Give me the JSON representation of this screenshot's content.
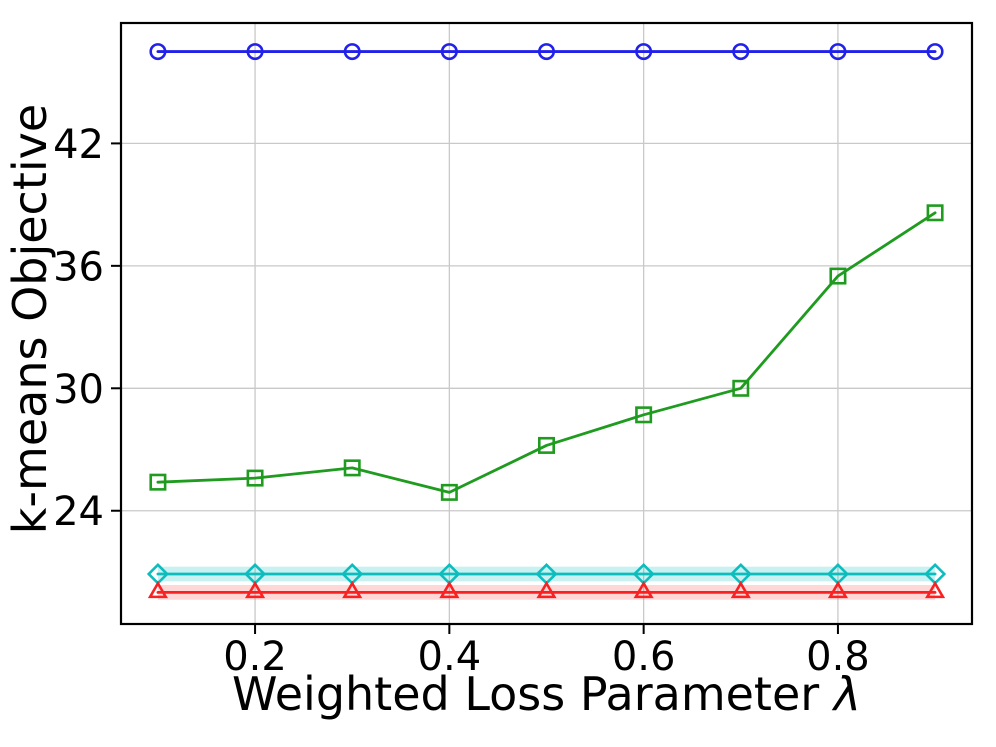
{
  "figure": {
    "background": "#ffffff",
    "plot_border_color": "#000000",
    "grid_color": "#c9c9c9",
    "tick_color": "#000000"
  },
  "chart_data": {
    "type": "line",
    "x": [
      0.1,
      0.2,
      0.3,
      0.4,
      0.5,
      0.6,
      0.7,
      0.8,
      0.9
    ],
    "series": [
      {
        "name": "blue-circle-series",
        "marker": "circle",
        "color": "#2121ea",
        "values": [
          46.5,
          46.5,
          46.5,
          46.5,
          46.5,
          46.5,
          46.5,
          46.5,
          46.5
        ]
      },
      {
        "name": "green-square-series",
        "marker": "square",
        "color": "#1f9b1f",
        "values": [
          25.4,
          25.6,
          26.1,
          24.9,
          27.2,
          28.7,
          30.0,
          35.5,
          38.6
        ]
      },
      {
        "name": "cyan-diamond-series",
        "marker": "diamond",
        "color": "#0dbdbd",
        "values": [
          20.9,
          20.9,
          20.9,
          20.9,
          20.9,
          20.9,
          20.9,
          20.9,
          20.9
        ],
        "band_half_width": 0.36,
        "band_opacity": 0.22
      },
      {
        "name": "red-triangle-series",
        "marker": "triangle",
        "color": "#f92222",
        "values": [
          20.0,
          20.0,
          20.0,
          20.0,
          20.0,
          20.0,
          20.0,
          20.0,
          20.0
        ],
        "band_half_width": 0.36,
        "band_opacity": 0.18
      }
    ],
    "title": "",
    "xlabel_text": "Weighted Loss Parameter ",
    "xlabel_symbol": "λ",
    "ylabel": "k-means Objective",
    "xticks": {
      "values": [
        0.2,
        0.4,
        0.6,
        0.8
      ],
      "labels": [
        "0.2",
        "0.4",
        "0.6",
        "0.8"
      ]
    },
    "yticks": {
      "values": [
        24,
        30,
        36,
        42
      ],
      "labels": [
        "24",
        "30",
        "36",
        "42"
      ]
    },
    "xlim": [
      0.062,
      0.938
    ],
    "ylim": [
      18.45,
      47.9
    ],
    "grid": true,
    "legend_position": "none"
  }
}
